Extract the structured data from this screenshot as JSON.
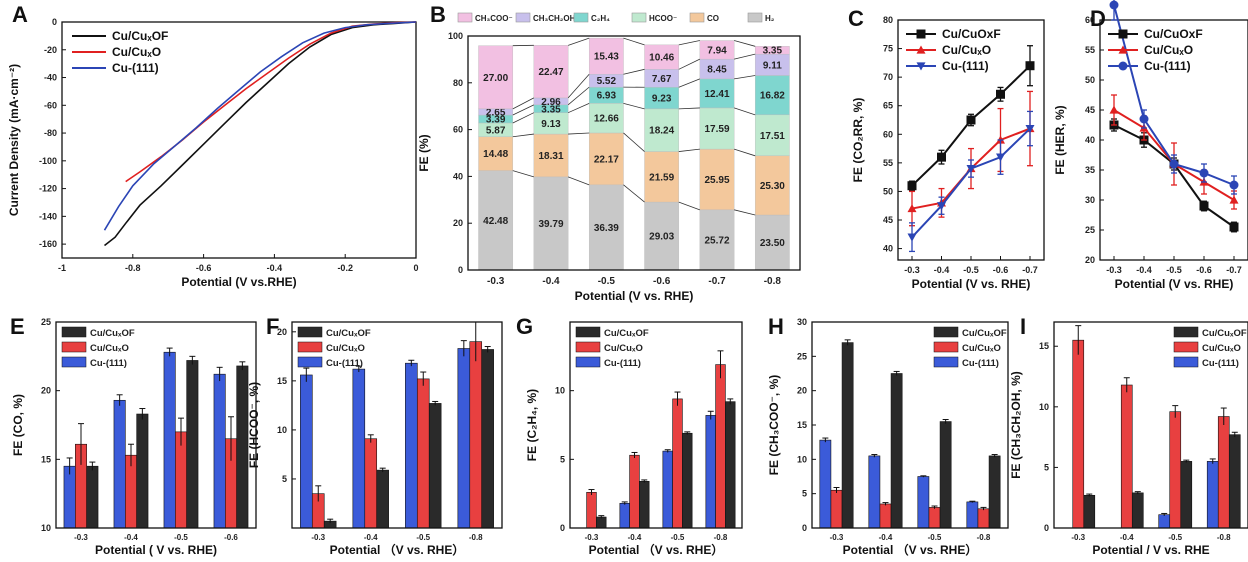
{
  "chart_data": [
    {
      "panel": "A",
      "type": "line",
      "xlabel": "Potential (V vs.RHE)",
      "ylabel": "Current Density (mA·cm⁻²)",
      "xlim": [
        -1,
        0
      ],
      "ylim": [
        -170,
        0
      ],
      "xticks": [
        -1,
        -0.8,
        -0.6,
        -0.4,
        -0.2,
        0
      ],
      "yticks": [
        0,
        -20,
        -40,
        -60,
        -80,
        -100,
        -120,
        -140,
        -160
      ],
      "legend": "top-left",
      "series": [
        {
          "name": "Cu/CuₓOF",
          "color": "#111111",
          "x": [
            -0.88,
            -0.85,
            -0.82,
            -0.78,
            -0.72,
            -0.66,
            -0.6,
            -0.54,
            -0.48,
            -0.42,
            -0.36,
            -0.3,
            -0.24,
            -0.18,
            -0.12,
            -0.06,
            0
          ],
          "y": [
            -161,
            -155,
            -145,
            -132,
            -118,
            -103,
            -88,
            -73,
            -58,
            -44,
            -30,
            -18,
            -9,
            -4,
            -2,
            -1,
            0
          ]
        },
        {
          "name": "Cu/CuₓO",
          "color": "#e02020",
          "x": [
            -0.82,
            -0.78,
            -0.72,
            -0.66,
            -0.6,
            -0.54,
            -0.48,
            -0.42,
            -0.36,
            -0.3,
            -0.24,
            -0.18,
            -0.12,
            -0.06,
            0
          ],
          "y": [
            -115,
            -108,
            -97,
            -85,
            -72,
            -60,
            -48,
            -37,
            -26,
            -16,
            -8,
            -3,
            -1.5,
            -0.5,
            0
          ]
        },
        {
          "name": "Cu-(111)",
          "color": "#2b45b5",
          "x": [
            -0.88,
            -0.84,
            -0.8,
            -0.74,
            -0.68,
            -0.62,
            -0.56,
            -0.5,
            -0.44,
            -0.38,
            -0.32,
            -0.26,
            -0.2,
            -0.14,
            -0.08,
            0
          ],
          "y": [
            -150,
            -133,
            -118,
            -102,
            -89,
            -76,
            -62,
            -49,
            -36,
            -25,
            -15,
            -8,
            -4,
            -2,
            -1,
            0
          ]
        }
      ]
    },
    {
      "panel": "B",
      "type": "bar",
      "stacked": true,
      "xlabel": "Potential (V vs. RHE)",
      "ylabel": "FE (%)",
      "ylim": [
        0,
        100
      ],
      "yticks": [
        0,
        20,
        40,
        60,
        80,
        100
      ],
      "categories": [
        "-0.3",
        "-0.4",
        "-0.5",
        "-0.6",
        "-0.7",
        "-0.8"
      ],
      "legend": "top",
      "series": [
        {
          "name": "H₂",
          "color": "#c8c8c8",
          "values": [
            42.48,
            39.79,
            36.39,
            29.03,
            25.72,
            23.5
          ]
        },
        {
          "name": "CO",
          "color": "#f3c89c",
          "values": [
            14.48,
            18.31,
            22.17,
            21.59,
            25.95,
            25.3
          ]
        },
        {
          "name": "HCOO⁻",
          "color": "#bfe9cf",
          "values": [
            5.87,
            9.13,
            12.66,
            18.24,
            17.59,
            17.51
          ]
        },
        {
          "name": "C₂H₄",
          "color": "#7fd6cf",
          "values": [
            3.39,
            3.35,
            6.93,
            9.23,
            12.41,
            16.82
          ]
        },
        {
          "name": "CH₃CH₂OH",
          "color": "#c8c0ec",
          "values": [
            2.65,
            2.96,
            5.52,
            7.67,
            8.45,
            9.11
          ]
        },
        {
          "name": "CH₃COO⁻",
          "color": "#f2c0e2",
          "values": [
            27.0,
            22.47,
            15.43,
            10.46,
            7.94,
            3.35
          ]
        }
      ]
    },
    {
      "panel": "C",
      "type": "line",
      "xlabel": "Potential  (V vs. RHE)",
      "ylabel": "FE (CO₂RR, %)",
      "categories": [
        "-0.3",
        "-0.4",
        "-0.5",
        "-0.6",
        "-0.7"
      ],
      "ylim": [
        38,
        80
      ],
      "yticks": [
        40,
        45,
        50,
        55,
        60,
        65,
        70,
        75,
        80
      ],
      "legend": "top-left",
      "series": [
        {
          "name": "Cu/CuOxF",
          "color": "#111111",
          "marker": "square",
          "values": [
            51,
            56,
            62.5,
            67,
            72
          ],
          "errors": [
            0.8,
            1.2,
            1,
            1.2,
            3.5
          ]
        },
        {
          "name": "Cu/CuₓO",
          "color": "#e02020",
          "marker": "triangle",
          "values": [
            47,
            48,
            54,
            59,
            61
          ],
          "errors": [
            3,
            2.5,
            3.5,
            5.5,
            6.5
          ]
        },
        {
          "name": "Cu-(111)",
          "color": "#2b45b5",
          "marker": "triangle-down",
          "values": [
            42,
            47.5,
            54,
            56,
            61
          ],
          "errors": [
            2.5,
            1.5,
            1.5,
            3,
            3
          ]
        }
      ]
    },
    {
      "panel": "D",
      "type": "line",
      "xlabel": "Potential  (V vs. RHE)",
      "ylabel": "FE (HER, %)",
      "categories": [
        "-0.3",
        "-0.4",
        "-0.5",
        "-0.6",
        "-0.7"
      ],
      "ylim": [
        20,
        60
      ],
      "yticks": [
        20,
        25,
        30,
        35,
        40,
        45,
        50,
        55,
        60
      ],
      "legend": "top-right",
      "series": [
        {
          "name": "Cu/CuOxF",
          "color": "#111111",
          "marker": "square",
          "values": [
            42.5,
            40,
            36,
            29,
            25.5
          ],
          "errors": [
            1,
            1.2,
            1,
            0.8,
            0.8
          ]
        },
        {
          "name": "Cu/CuₓO",
          "color": "#e02020",
          "marker": "triangle",
          "values": [
            45,
            42,
            36,
            33,
            30
          ],
          "errors": [
            2.5,
            2,
            3.5,
            2,
            1.5
          ]
        },
        {
          "name": "Cu-(111)",
          "color": "#2b45b5",
          "marker": "circle",
          "values": [
            62.5,
            43.5,
            36,
            34.5,
            32.5
          ],
          "errors": [
            2.5,
            1.5,
            1.5,
            1.5,
            1.5
          ]
        }
      ]
    },
    {
      "panel": "E",
      "type": "bar",
      "xlabel": "Potential  ( V vs. RHE)",
      "ylabel": "FE (CO, %)",
      "categories": [
        "-0.3",
        "-0.4",
        "-0.5",
        "-0.6"
      ],
      "ylim": [
        10,
        25
      ],
      "yticks": [
        10,
        15,
        20,
        25
      ],
      "legend": "top-left",
      "series": [
        {
          "name": "Cu/CuₓOF",
          "color": "#2a2a2a",
          "values": [
            14.5,
            18.3,
            22.2,
            21.8
          ],
          "errors": [
            0.3,
            0.4,
            0.3,
            0.3
          ]
        },
        {
          "name": "Cu/CuₓO",
          "color": "#e84040",
          "values": [
            16.1,
            15.3,
            17,
            16.5
          ],
          "errors": [
            1.5,
            0.8,
            1,
            1.6
          ]
        },
        {
          "name": "Cu-(111)",
          "color": "#3b5bd9",
          "values": [
            14.5,
            19.3,
            22.8,
            21.2
          ],
          "errors": [
            0.6,
            0.4,
            0.3,
            0.5
          ]
        }
      ]
    },
    {
      "panel": "F",
      "type": "bar",
      "xlabel": "Potential  （V vs. RHE）",
      "ylabel": "FE (HCOO⁻, %)",
      "categories": [
        "-0.3",
        "-0.4",
        "-0.5",
        "-0.8"
      ],
      "ylim": [
        0,
        21
      ],
      "yticks": [
        5,
        10,
        15,
        20
      ],
      "legend": "top-left",
      "series": [
        {
          "name": "Cu/CuₓOF",
          "color": "#2a2a2a",
          "values": [
            0.7,
            5.9,
            12.7,
            18.2
          ],
          "errors": [
            0.2,
            0.2,
            0.2,
            0.3
          ]
        },
        {
          "name": "Cu/CuₓO",
          "color": "#e84040",
          "values": [
            3.5,
            9.1,
            15.2,
            19
          ],
          "errors": [
            0.8,
            0.4,
            0.7,
            2
          ]
        },
        {
          "name": "Cu-(111)",
          "color": "#3b5bd9",
          "values": [
            15.6,
            16.2,
            16.8,
            18.3
          ],
          "errors": [
            0.7,
            0.3,
            0.3,
            0.8
          ]
        }
      ]
    },
    {
      "panel": "G",
      "type": "bar",
      "xlabel": "Potential  （V vs. RHE）",
      "ylabel": "FE (C₂H₄, %)",
      "categories": [
        "-0.3",
        "-0.4",
        "-0.5",
        "-0.8"
      ],
      "ylim": [
        0,
        15
      ],
      "yticks": [
        0,
        5,
        10
      ],
      "legend": "top-left",
      "series": [
        {
          "name": "Cu/CuₓOF",
          "color": "#2a2a2a",
          "values": [
            0.8,
            3.4,
            6.9,
            9.2
          ],
          "errors": [
            0.1,
            0.1,
            0.1,
            0.2
          ]
        },
        {
          "name": "Cu/CuₓO",
          "color": "#e84040",
          "values": [
            2.6,
            5.3,
            9.4,
            11.9
          ],
          "errors": [
            0.2,
            0.2,
            0.5,
            1
          ]
        },
        {
          "name": "Cu-(111)",
          "color": "#3b5bd9",
          "values": [
            0,
            1.8,
            5.6,
            8.2
          ],
          "errors": [
            0,
            0.1,
            0.1,
            0.3
          ]
        }
      ]
    },
    {
      "panel": "H",
      "type": "bar",
      "xlabel": "Potential  （V vs. RHE）",
      "ylabel": "FE (CH₃COO⁻, %)",
      "categories": [
        "-0.3",
        "-0.4",
        "-0.5",
        "-0.8"
      ],
      "ylim": [
        0,
        30
      ],
      "yticks": [
        0,
        5,
        10,
        15,
        20,
        25,
        30
      ],
      "legend": "top-right",
      "series": [
        {
          "name": "Cu/CuₓOF",
          "color": "#2a2a2a",
          "values": [
            27,
            22.5,
            15.5,
            10.5
          ],
          "errors": [
            0.4,
            0.3,
            0.3,
            0.2
          ]
        },
        {
          "name": "Cu/CuₓO",
          "color": "#e84040",
          "values": [
            5.5,
            3.5,
            3,
            2.8
          ],
          "errors": [
            0.4,
            0.2,
            0.2,
            0.2
          ]
        },
        {
          "name": "Cu-(111)",
          "color": "#3b5bd9",
          "values": [
            12.8,
            10.5,
            7.5,
            3.8
          ],
          "errors": [
            0.3,
            0.2,
            0.1,
            0.1
          ]
        }
      ]
    },
    {
      "panel": "I",
      "type": "bar",
      "xlabel": "Potential / V vs. RHE",
      "ylabel": "FE (CH₃CH₂OH, %)",
      "categories": [
        "-0.3",
        "-0.4",
        "-0.5",
        "-0.8"
      ],
      "ylim": [
        0,
        17
      ],
      "yticks": [
        0,
        5,
        10,
        15
      ],
      "legend": "top-right",
      "series": [
        {
          "name": "Cu/CuₓOF",
          "color": "#2a2a2a",
          "values": [
            2.7,
            2.9,
            5.5,
            7.7
          ],
          "errors": [
            0.1,
            0.1,
            0.1,
            0.2
          ]
        },
        {
          "name": "Cu/CuₓO",
          "color": "#e84040",
          "values": [
            15.5,
            11.8,
            9.6,
            9.2
          ],
          "errors": [
            1.2,
            0.6,
            0.5,
            0.7
          ]
        },
        {
          "name": "Cu-(111)",
          "color": "#3b5bd9",
          "values": [
            0,
            0,
            1.1,
            5.5
          ],
          "errors": [
            0,
            0,
            0.1,
            0.2
          ]
        }
      ]
    }
  ]
}
